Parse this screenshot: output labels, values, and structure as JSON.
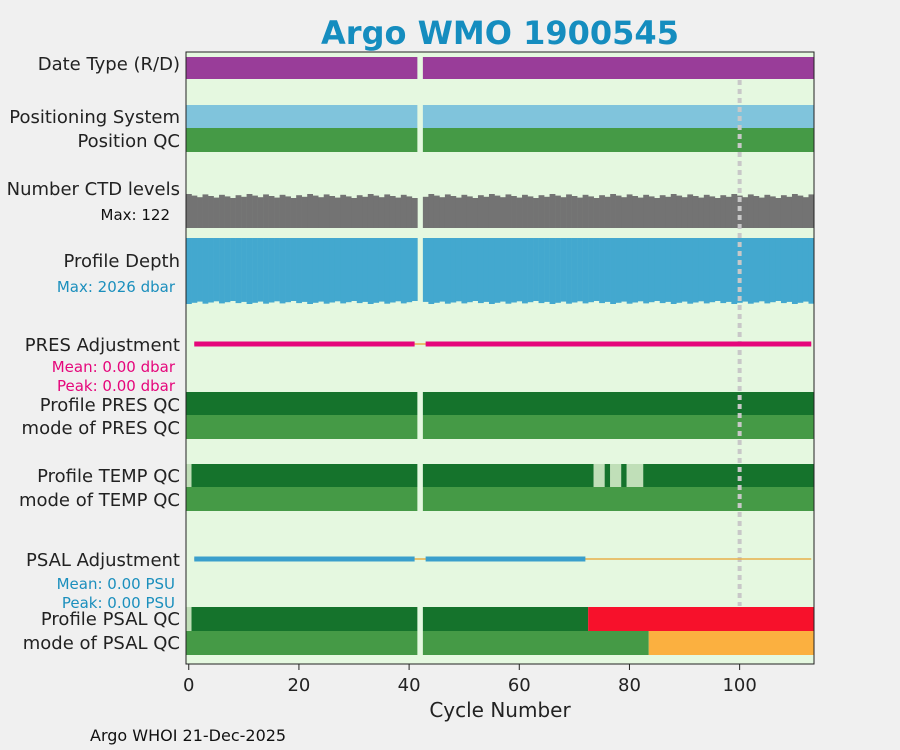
{
  "chart_data": {
    "type": "timeline",
    "title": "Argo WMO 1900545",
    "xlabel": "Cycle Number",
    "x_range": [
      -0.5,
      113.5
    ],
    "x_ticks": [
      0,
      20,
      40,
      60,
      80,
      100
    ],
    "x_tick_labels": [
      "0",
      "20",
      "40",
      "60",
      "80",
      "100"
    ],
    "missing_cycle": 42,
    "marker_cycle": 100,
    "rows": [
      {
        "name": "date-type",
        "label": "Date Type (R/D)",
        "color": "#993d99",
        "segments": [
          {
            "from": -0.5,
            "to": 41.5
          },
          {
            "from": 42.5,
            "to": 113.5
          }
        ]
      },
      {
        "name": "positioning-system",
        "label": "Positioning System",
        "color": "#80c4dc",
        "segments": [
          {
            "from": -0.5,
            "to": 41.5
          },
          {
            "from": 42.5,
            "to": 113.5
          }
        ]
      },
      {
        "name": "position-qc",
        "label": "Position QC",
        "color": "#459a46",
        "segments": [
          {
            "from": -0.5,
            "to": 41.5
          },
          {
            "from": 42.5,
            "to": 113.5
          }
        ]
      },
      {
        "name": "profile-pres-qc",
        "label": "Profile PRES QC",
        "color": "#15732c",
        "segments": [
          {
            "from": -0.5,
            "to": 41.5
          },
          {
            "from": 42.5,
            "to": 113.5
          }
        ]
      },
      {
        "name": "mode-of-pres-qc",
        "label": "mode of PRES QC",
        "color": "#459a46",
        "segments": [
          {
            "from": -0.5,
            "to": 41.5
          },
          {
            "from": 42.5,
            "to": 113.5
          }
        ]
      },
      {
        "name": "profile-temp-qc",
        "label": "Profile TEMP QC",
        "color": "#15732c",
        "segments": [
          {
            "from": -0.5,
            "to": 0.5,
            "color": "#c0dfb8"
          },
          {
            "from": 0.5,
            "to": 41.5
          },
          {
            "from": 42.5,
            "to": 73.5
          },
          {
            "from": 73.5,
            "to": 75.5,
            "color": "#c0dfb8"
          },
          {
            "from": 75.5,
            "to": 76.5
          },
          {
            "from": 76.5,
            "to": 78.5,
            "color": "#c0dfb8"
          },
          {
            "from": 78.5,
            "to": 79.5
          },
          {
            "from": 79.5,
            "to": 82.5,
            "color": "#c0dfb8"
          },
          {
            "from": 82.5,
            "to": 113.5
          }
        ]
      },
      {
        "name": "mode-of-temp-qc",
        "label": "mode of TEMP QC",
        "color": "#459a46",
        "segments": [
          {
            "from": -0.5,
            "to": 41.5
          },
          {
            "from": 42.5,
            "to": 113.5
          }
        ]
      },
      {
        "name": "profile-psal-qc",
        "label": "Profile PSAL QC",
        "color": "#15732c",
        "segments": [
          {
            "from": -0.5,
            "to": 0.5,
            "color": "#c0dfb8"
          },
          {
            "from": 0.5,
            "to": 41.5
          },
          {
            "from": 42.5,
            "to": 72.5
          },
          {
            "from": 72.5,
            "to": 113.5,
            "color": "#f7112b"
          }
        ]
      },
      {
        "name": "mode-of-psal-qc",
        "label": "mode of PSAL QC",
        "color": "#459a46",
        "segments": [
          {
            "from": -0.5,
            "to": 41.5
          },
          {
            "from": 42.5,
            "to": 83.5
          },
          {
            "from": 83.5,
            "to": 113.5,
            "color": "#fbb040"
          }
        ]
      }
    ],
    "ctd_levels": {
      "label": "Number CTD levels",
      "max_text": "Max: 122",
      "max": 122,
      "color": "#737373"
    },
    "profile_depth": {
      "label": "Profile Depth",
      "max_text": "Max: 2026 dbar",
      "max": 2026,
      "color": "#43a8cf",
      "text_color": "#1b8fbd"
    },
    "pres_adjustment": {
      "label": "PRES Adjustment",
      "mean_text": "Mean: 0.00 dbar",
      "peak_text": "Peak: 0.00 dbar",
      "color": "#e5067b",
      "segments": [
        {
          "from": 1,
          "to": 41
        },
        {
          "from": 43,
          "to": 113
        }
      ],
      "baseline_color": "#e8b04a"
    },
    "psal_adjustment": {
      "label": "PSAL Adjustment",
      "mean_text": "Mean: 0.00 PSU",
      "peak_text": "Peak: 0.00 PSU",
      "color": "#3a9fcc",
      "text_color": "#1b8fbd",
      "segments": [
        {
          "from": 1,
          "to": 41
        },
        {
          "from": 43,
          "to": 72
        }
      ],
      "baseline_color": "#e8b04a"
    },
    "footer": "Argo WHOI 21-Dec-2025",
    "colors": {
      "title": "#158dbf",
      "plot_bg": "#e5f8e0",
      "figure_bg": "#f0f0f0",
      "marker": "#c8c8c8"
    }
  }
}
